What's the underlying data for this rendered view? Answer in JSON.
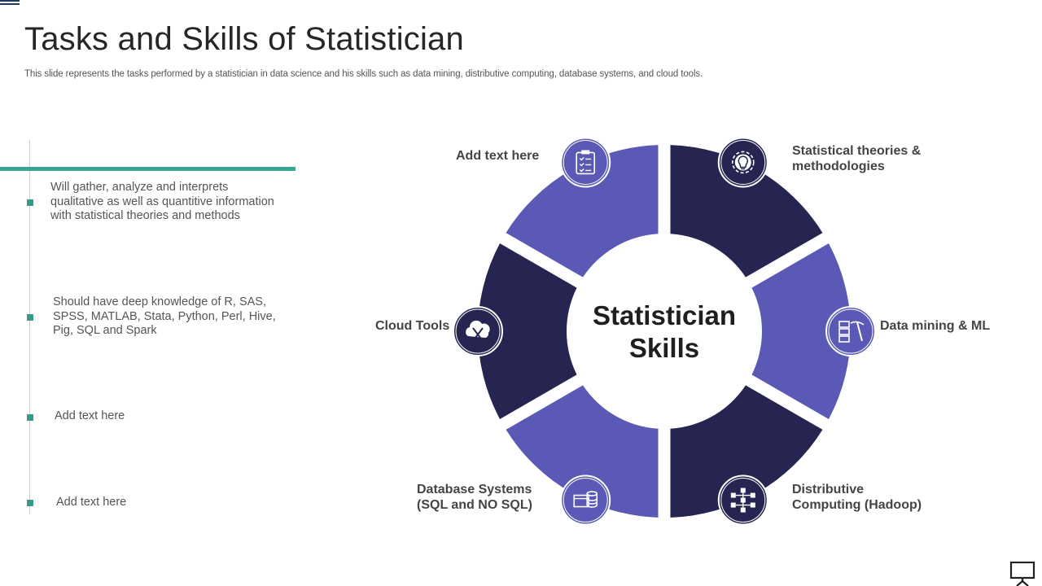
{
  "slide": {
    "title": "Tasks and Skills of Statistician",
    "subtitle": "This slide represents the tasks performed by a statistician in data science and his skills such as data mining, distributive computing, database systems, and cloud tools."
  },
  "tasks": [
    {
      "lines": [
        "Will gather, analyze and interprets",
        "qualitative as well as quantitive information",
        "with statistical theories and methods"
      ]
    },
    {
      "lines": [
        "Should have deep knowledge of R, SAS,",
        "SPSS, MATLAB,  Stata, Python, Perl, Hive,",
        "Pig, SQL and Spark"
      ]
    },
    {
      "lines": [
        "Add text here"
      ]
    },
    {
      "lines": [
        "Add text here"
      ]
    }
  ],
  "diagram": {
    "center": {
      "line1": "Statistician",
      "line2": "Skills"
    },
    "skills": [
      {
        "label_lines": [
          "Statistical theories &",
          "methodologies"
        ],
        "icon": "gear-lightbulb-icon"
      },
      {
        "label_lines": [
          "Data mining & ML"
        ],
        "icon": "server-pickaxe-icon"
      },
      {
        "label_lines": [
          "Distributive",
          "Computing (Hadoop)"
        ],
        "icon": "network-nodes-icon"
      },
      {
        "label_lines": [
          "Database Systems",
          "(SQL and NO SQL)"
        ],
        "icon": "database-screen-icon"
      },
      {
        "label_lines": [
          "Cloud Tools"
        ],
        "icon": "cloud-tools-icon"
      },
      {
        "label_lines": [
          "Add text here"
        ],
        "icon": "clipboard-checklist-icon"
      }
    ],
    "colors": {
      "dark": "#262552",
      "light": "#5a59b5"
    }
  },
  "footer": {
    "icon": "presentation-screen-icon"
  }
}
